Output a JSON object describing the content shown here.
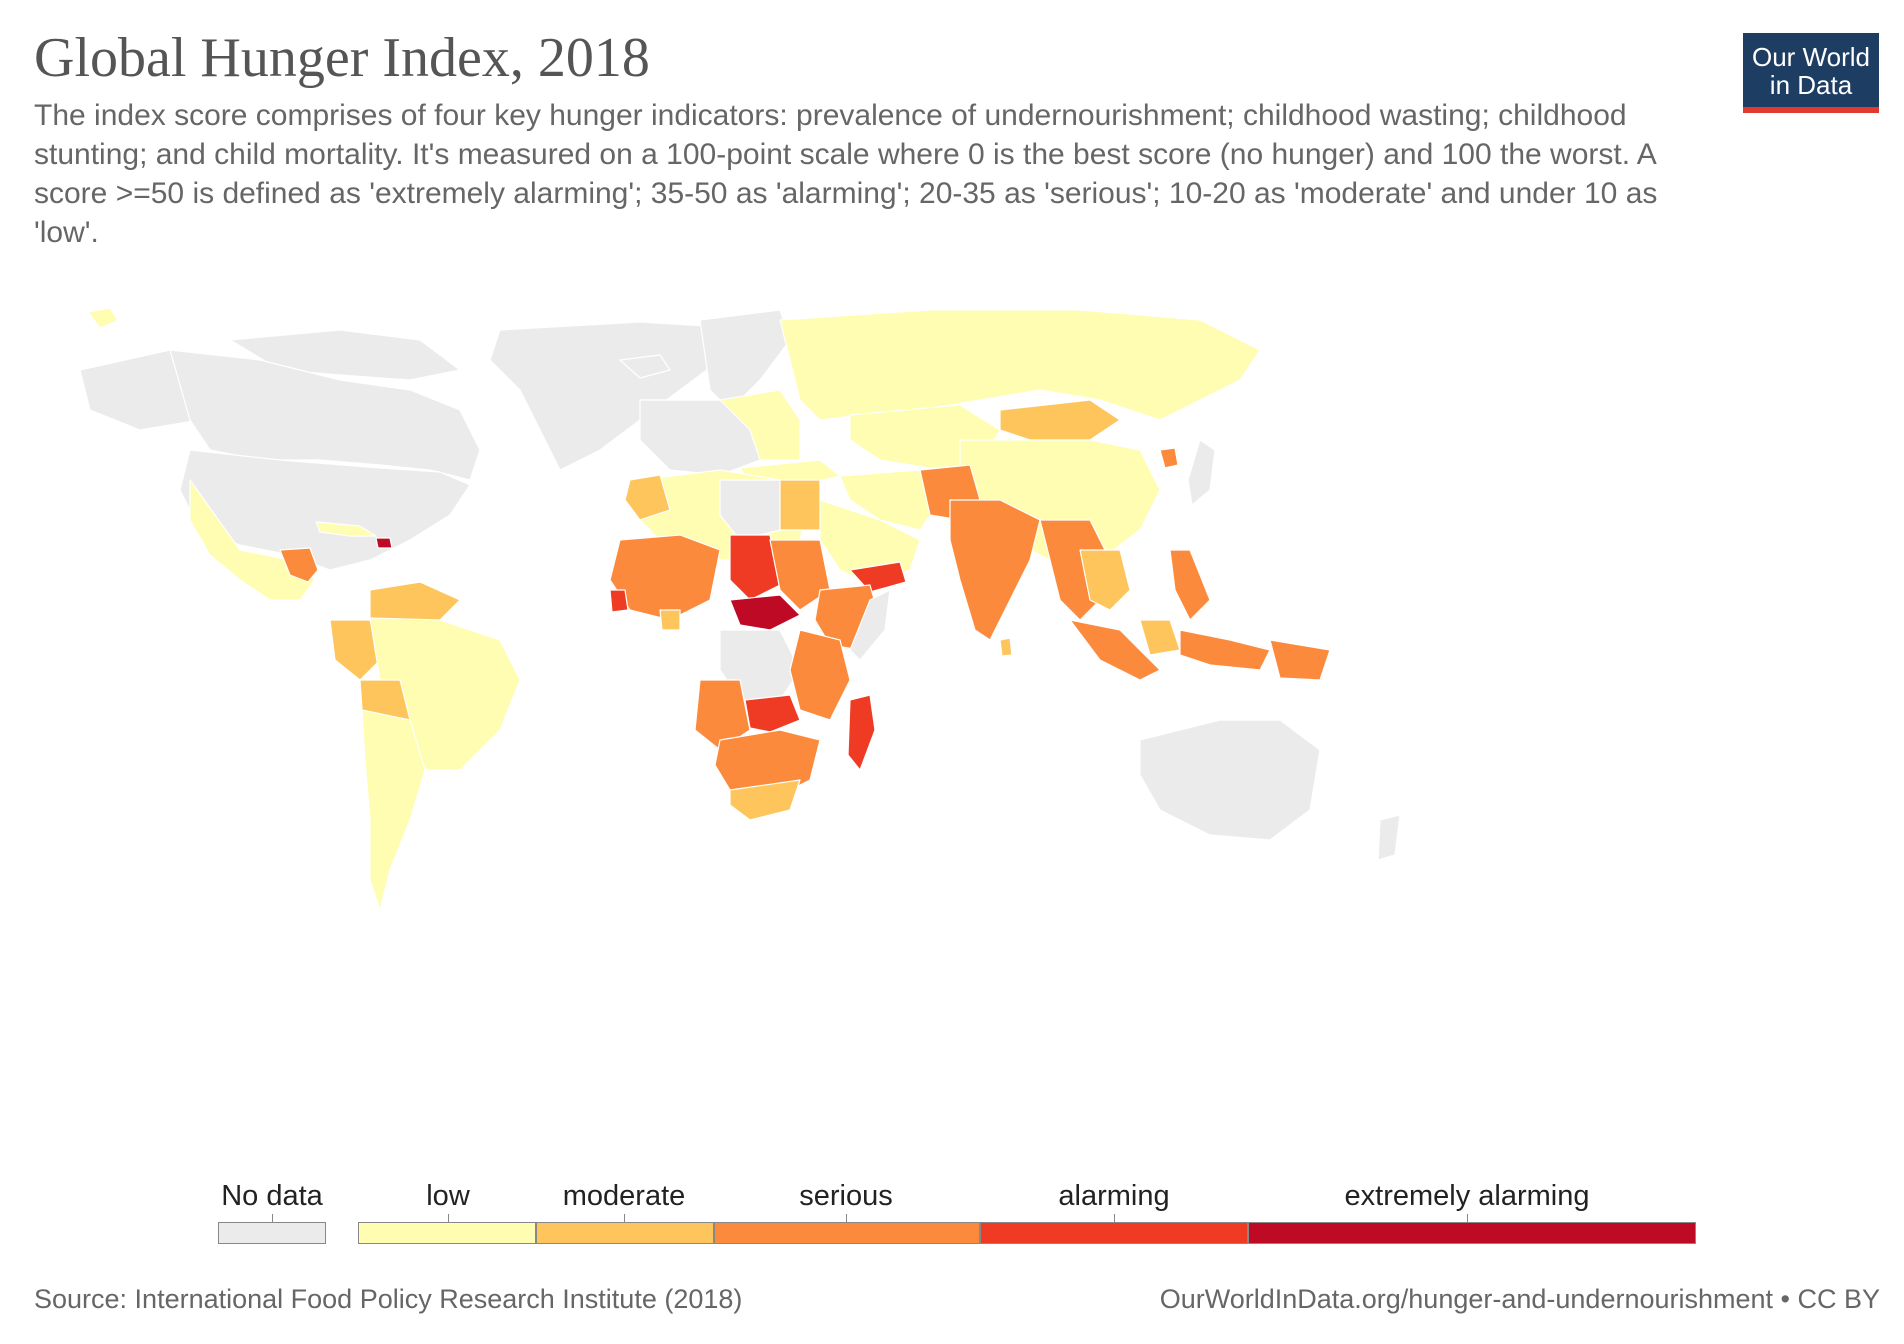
{
  "header": {
    "title": "Global Hunger Index, 2018",
    "subtitle": "The index score comprises of four key hunger indicators: prevalence of undernourishment; childhood wasting; childhood stunting; and child mortality. It's measured on a 100-point scale where 0 is the best score (no hunger) and 100 the worst. A score >=50 is defined as 'extremely alarming'; 35-50 as 'alarming'; 20-35 as 'serious'; 10-20 as 'moderate' and under 10 as 'low'."
  },
  "logo": {
    "line1": "Our World",
    "line2": "in Data"
  },
  "legend": {
    "no_data": {
      "label": "No data",
      "color": "#ebebeb"
    },
    "bins": [
      {
        "label": "low",
        "min": 0,
        "max": 10,
        "color": "#fefdb1"
      },
      {
        "label": "moderate",
        "min": 10,
        "max": 20,
        "color": "#fdc55c"
      },
      {
        "label": "serious",
        "min": 20,
        "max": 35,
        "color": "#fc8a3c"
      },
      {
        "label": "alarming",
        "min": 35,
        "max": 50,
        "color": "#ef3b24"
      },
      {
        "label": "extremely alarming",
        "min": 50,
        "max": 100,
        "color": "#bf0a26"
      }
    ]
  },
  "footer": {
    "source": "Source: International Food Policy Research Institute (2018)",
    "url": "OurWorldInData.org/hunger-and-undernourishment • CC BY"
  },
  "colors": {
    "low": "#fefdb1",
    "moderate": "#fdc55c",
    "serious": "#fc8a3c",
    "alarming": "#ef3b24",
    "extreme": "#bf0a26",
    "nodata": "#ebebeb",
    "border": "#ffffff"
  }
}
